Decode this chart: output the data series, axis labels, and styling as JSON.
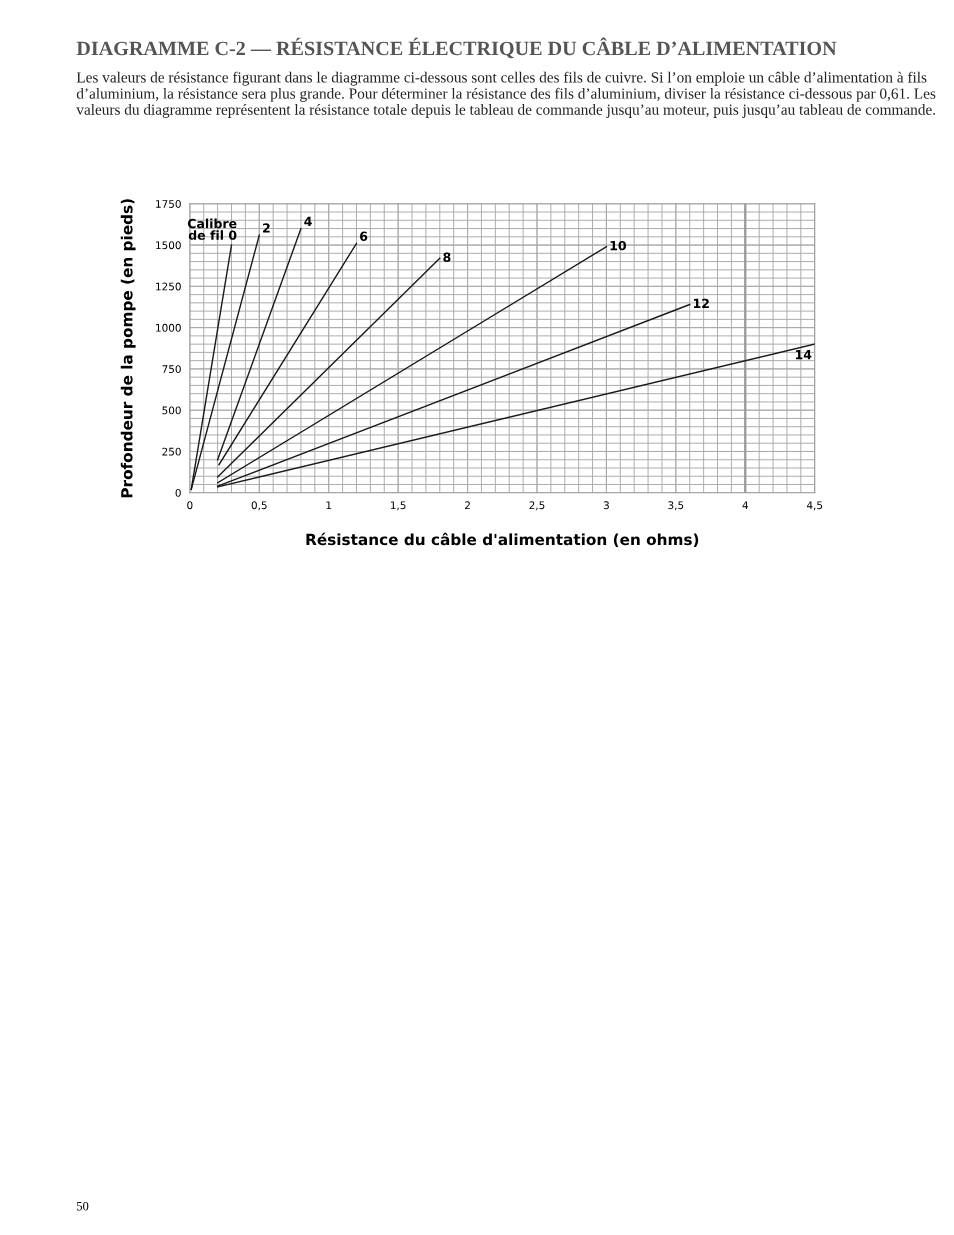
{
  "chart_data": {
    "type": "line",
    "title": "DIAGRAMME C-2 — RÉSISTANCE ÉLECTRIQUE DU CÂBLE D’ALIMENTATION",
    "subtitle": "Les valeurs de résistance figurant dans le diagramme ci-dessous sont celles des fils de cuivre. Si l’on emploie un câble d’alimentation à fils d’aluminium, la résistance sera plus grande. Pour déterminer la résistance des fils d’aluminium, diviser la résistance ci-dessous par 0,61. Les valeurs du diagramme représentent la résistance totale depuis le tableau de commande jusqu’au moteur, puis jusqu’au tableau de commande.",
    "xlabel": "Résistance du câble d'alimentation (en ohms)",
    "ylabel": "Profondeur de la pompe (en pieds)",
    "xlim": [
      0,
      4.5
    ],
    "ylim": [
      0,
      1750
    ],
    "xticks": [
      0,
      {
        "value": 0.5,
        "label": "0,5"
      },
      1,
      {
        "value": 1.5,
        "label": "1,5"
      },
      2,
      {
        "value": 2.5,
        "label": "2,5"
      },
      3,
      {
        "value": 3.5,
        "label": "3,5"
      },
      4,
      {
        "value": 4.5,
        "label": "4,5"
      }
    ],
    "yticks": [
      0,
      250,
      500,
      750,
      1000,
      1250,
      1500,
      1750
    ],
    "grid": true,
    "legend": false,
    "marker": "none",
    "line_style": "solid",
    "ref_lines": [
      {
        "axis": "x",
        "value": 4,
        "color": "#999999"
      }
    ],
    "annotations": [
      "50"
    ],
    "series": [
      {
        "name": "Calibre\nde fil 0",
        "color": "#1a1a1a",
        "x": [
          0.01,
          0.3
        ],
        "values": [
          20,
          1500
        ]
      },
      {
        "name": "2",
        "color": "#1a1a1a",
        "x": [
          0.01,
          0.5
        ],
        "values": [
          20,
          1560
        ]
      },
      {
        "name": "4",
        "color": "#1a1a1a",
        "x": [
          0.2,
          0.8
        ],
        "values": [
          200,
          1600
        ]
      },
      {
        "name": "6",
        "color": "#1a1a1a",
        "x": [
          0.21,
          1.2
        ],
        "values": [
          170,
          1510
        ]
      },
      {
        "name": "8",
        "color": "#1a1a1a",
        "x": [
          0.2,
          1.8
        ],
        "values": [
          95,
          1420
        ]
      },
      {
        "name": "10",
        "color": "#1a1a1a",
        "x": [
          0.2,
          3.0
        ],
        "values": [
          60,
          1490
        ]
      },
      {
        "name": "12",
        "color": "#1a1a1a",
        "x": [
          0.2,
          3.6
        ],
        "values": [
          40,
          1140
        ]
      },
      {
        "name": "14",
        "color": "#1a1a1a",
        "x": [
          0.2,
          4.5
        ],
        "values": [
          35,
          900
        ]
      }
    ]
  }
}
